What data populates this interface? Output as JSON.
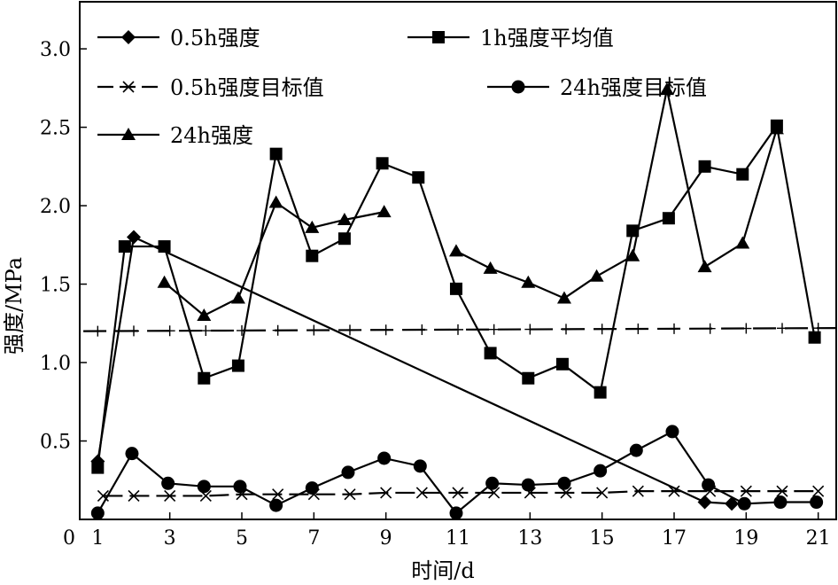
{
  "chart_data": {
    "type": "line",
    "title": "",
    "xlabel": "时间/d",
    "ylabel": "强度/MPa",
    "xlim": [
      0.5,
      21.5
    ],
    "ylim": [
      0,
      3.3
    ],
    "x_ticks": [
      1,
      3,
      5,
      7,
      9,
      11,
      13,
      15,
      17,
      19,
      21
    ],
    "y_ticks": [
      0.5,
      1.0,
      1.5,
      2.0,
      2.5,
      3.0
    ],
    "y_tick_labels": [
      "0.5",
      "1.0",
      "1.5",
      "2.0",
      "2.5",
      "3.0"
    ],
    "origin_label": "0",
    "grid": false,
    "legend_placement": "top",
    "series": [
      {
        "name": "0.5h强度",
        "marker": "diamond",
        "dash": "solid",
        "points": [
          [
            1,
            0.37
          ],
          [
            2,
            1.8
          ],
          [
            17.85,
            0.11
          ],
          [
            18.6,
            0.1
          ]
        ]
      },
      {
        "name": "1h强度平均值",
        "marker": "square",
        "dash": "solid",
        "points": [
          [
            1,
            0.33
          ],
          [
            1.75,
            1.74
          ],
          [
            2.85,
            1.74
          ],
          [
            3.95,
            0.9
          ],
          [
            4.9,
            0.98
          ],
          [
            5.95,
            2.33
          ],
          [
            6.95,
            1.68
          ],
          [
            7.85,
            1.79
          ],
          [
            8.9,
            2.27
          ],
          [
            9.9,
            2.18
          ],
          [
            10.95,
            1.47
          ],
          [
            11.9,
            1.06
          ],
          [
            12.95,
            0.9
          ],
          [
            13.9,
            0.99
          ],
          [
            14.95,
            0.81
          ],
          [
            15.85,
            1.84
          ],
          [
            16.85,
            1.92
          ],
          [
            17.85,
            2.25
          ],
          [
            18.9,
            2.2
          ],
          [
            19.85,
            2.51
          ],
          [
            20.9,
            1.16
          ]
        ]
      },
      {
        "name": "0.5h强度目标值",
        "marker": "cross",
        "dash": "dash",
        "points": [
          [
            1.15,
            0.15
          ],
          [
            2,
            0.15
          ],
          [
            3,
            0.15
          ],
          [
            4,
            0.15
          ],
          [
            5,
            0.16
          ],
          [
            6,
            0.16
          ],
          [
            7,
            0.16
          ],
          [
            8,
            0.16
          ],
          [
            9,
            0.17
          ],
          [
            10,
            0.17
          ],
          [
            11,
            0.17
          ],
          [
            12,
            0.17
          ],
          [
            13,
            0.17
          ],
          [
            14,
            0.17
          ],
          [
            15,
            0.17
          ],
          [
            16,
            0.18
          ],
          [
            17,
            0.18
          ],
          [
            18,
            0.18
          ],
          [
            19,
            0.18
          ],
          [
            20,
            0.18
          ],
          [
            21,
            0.18
          ]
        ]
      },
      {
        "name": "24h强度目标值",
        "marker": "circle",
        "dash": "solid",
        "points": [
          [
            1,
            0.04
          ],
          [
            1.95,
            0.42
          ],
          [
            2.95,
            0.23
          ],
          [
            3.95,
            0.21
          ],
          [
            4.95,
            0.21
          ],
          [
            5.95,
            0.09
          ],
          [
            6.95,
            0.2
          ],
          [
            7.95,
            0.3
          ],
          [
            8.95,
            0.39
          ],
          [
            9.95,
            0.34
          ],
          [
            10.95,
            0.04
          ],
          [
            11.95,
            0.23
          ],
          [
            12.95,
            0.22
          ],
          [
            13.95,
            0.23
          ],
          [
            14.95,
            0.31
          ],
          [
            15.95,
            0.44
          ],
          [
            16.95,
            0.56
          ],
          [
            17.95,
            0.22
          ],
          [
            18.95,
            0.1
          ],
          [
            19.95,
            0.11
          ],
          [
            20.95,
            0.11
          ]
        ]
      },
      {
        "name": "24h强度",
        "marker": "triangle",
        "dash": "solid",
        "points": [
          [
            2.85,
            1.51
          ],
          [
            3.95,
            1.3
          ],
          [
            4.9,
            1.41
          ],
          [
            5.95,
            2.02
          ],
          [
            6.95,
            1.86
          ],
          [
            7.85,
            1.91
          ],
          [
            8.95,
            1.96
          ]
        ]
      },
      {
        "name": "",
        "marker": "triangle",
        "dash": "solid",
        "points": [
          [
            10.95,
            1.71
          ],
          [
            11.9,
            1.6
          ],
          [
            12.95,
            1.51
          ],
          [
            13.95,
            1.41
          ],
          [
            14.85,
            1.55
          ],
          [
            15.85,
            1.68
          ],
          [
            16.8,
            2.74
          ],
          [
            17.85,
            1.61
          ],
          [
            18.9,
            1.76
          ],
          [
            19.85,
            2.49
          ]
        ]
      },
      {
        "name": "",
        "marker": "none",
        "dash": "dash-plus",
        "points": [
          [
            0.6,
            1.2
          ],
          [
            21.5,
            1.22
          ]
        ]
      }
    ],
    "legend": [
      {
        "label": "0.5h强度",
        "marker": "diamond",
        "dash": "solid"
      },
      {
        "label": "1h强度平均值",
        "marker": "square",
        "dash": "solid"
      },
      {
        "label": "0.5h强度目标值",
        "marker": "cross",
        "dash": "dash"
      },
      {
        "label": "24h强度目标值",
        "marker": "circle",
        "dash": "solid"
      },
      {
        "label": "24h强度",
        "marker": "triangle",
        "dash": "solid"
      }
    ]
  }
}
